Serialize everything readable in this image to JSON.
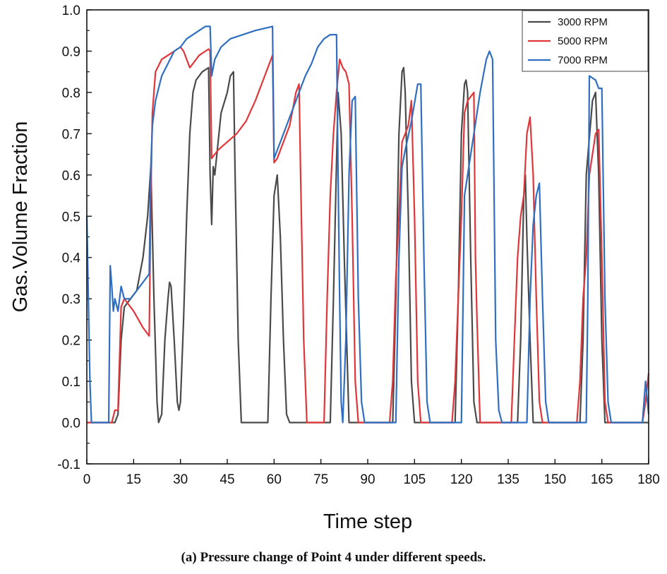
{
  "chart_data": {
    "type": "line",
    "title": "",
    "xlabel": "Time step",
    "ylabel": "Gas.Volume Fraction",
    "xlim": [
      0,
      180
    ],
    "ylim": [
      -0.1,
      1.0
    ],
    "xticks": [
      "0",
      "15",
      "30",
      "45",
      "60",
      "75",
      "90",
      "105",
      "120",
      "135",
      "150",
      "165",
      "180"
    ],
    "yticks": [
      "-0.1",
      "0.0",
      "0.1",
      "0.2",
      "0.3",
      "0.4",
      "0.5",
      "0.6",
      "0.7",
      "0.8",
      "0.9",
      "1.0"
    ],
    "legend_position": "top-right",
    "series": [
      {
        "name": "3000 RPM",
        "color": "#4a4a4a",
        "points": [
          [
            0,
            0
          ],
          [
            9,
            0
          ],
          [
            10,
            0.02
          ],
          [
            11,
            0.2
          ],
          [
            12,
            0.28
          ],
          [
            14,
            0.3
          ],
          [
            16,
            0.32
          ],
          [
            18,
            0.4
          ],
          [
            19.5,
            0.5
          ],
          [
            20.5,
            0.62
          ],
          [
            21.5,
            0.3
          ],
          [
            22.5,
            0.05
          ],
          [
            23,
            0
          ],
          [
            24,
            0.02
          ],
          [
            25,
            0.2
          ],
          [
            26,
            0.3
          ],
          [
            26.5,
            0.34
          ],
          [
            27,
            0.33
          ],
          [
            28,
            0.2
          ],
          [
            29,
            0.05
          ],
          [
            29.5,
            0.03
          ],
          [
            30,
            0.05
          ],
          [
            31,
            0.25
          ],
          [
            32,
            0.5
          ],
          [
            33,
            0.7
          ],
          [
            34,
            0.8
          ],
          [
            35,
            0.83
          ],
          [
            37,
            0.85
          ],
          [
            39,
            0.86
          ],
          [
            39.5,
            0.6
          ],
          [
            40,
            0.48
          ],
          [
            40.5,
            0.62
          ],
          [
            41,
            0.6
          ],
          [
            43,
            0.75
          ],
          [
            45,
            0.8
          ],
          [
            46,
            0.84
          ],
          [
            47,
            0.85
          ],
          [
            47.5,
            0.6
          ],
          [
            48.5,
            0.2
          ],
          [
            49.5,
            0
          ],
          [
            58,
            0
          ],
          [
            59,
            0.3
          ],
          [
            60,
            0.55
          ],
          [
            61,
            0.6
          ],
          [
            62,
            0.45
          ],
          [
            63,
            0.2
          ],
          [
            64,
            0.02
          ],
          [
            65,
            0
          ],
          [
            78,
            0
          ],
          [
            79,
            0.3
          ],
          [
            80.5,
            0.8
          ],
          [
            81.5,
            0.7
          ],
          [
            82.5,
            0.4
          ],
          [
            84,
            0
          ],
          [
            98,
            0
          ],
          [
            99,
            0.3
          ],
          [
            100,
            0.7
          ],
          [
            101,
            0.85
          ],
          [
            101.5,
            0.86
          ],
          [
            102,
            0.8
          ],
          [
            103,
            0.5
          ],
          [
            104,
            0.1
          ],
          [
            105,
            0
          ],
          [
            118,
            0
          ],
          [
            119,
            0.3
          ],
          [
            120,
            0.7
          ],
          [
            121,
            0.82
          ],
          [
            121.5,
            0.83
          ],
          [
            122,
            0.8
          ],
          [
            123,
            0.4
          ],
          [
            124,
            0.05
          ],
          [
            125,
            0
          ],
          [
            138,
            0
          ],
          [
            139,
            0.2
          ],
          [
            140,
            0.55
          ],
          [
            140.5,
            0.6
          ],
          [
            141,
            0.45
          ],
          [
            142,
            0.2
          ],
          [
            143,
            0
          ],
          [
            158,
            0
          ],
          [
            159,
            0.2
          ],
          [
            160,
            0.6
          ],
          [
            162,
            0.78
          ],
          [
            163,
            0.8
          ],
          [
            164,
            0.6
          ],
          [
            165,
            0.2
          ],
          [
            166,
            0
          ],
          [
            180,
            0
          ]
        ]
      },
      {
        "name": "5000 RPM",
        "color": "#e0363a",
        "points": [
          [
            0,
            0
          ],
          [
            8,
            0
          ],
          [
            9,
            0.03
          ],
          [
            10,
            0.03
          ],
          [
            11,
            0.28
          ],
          [
            12,
            0.3
          ],
          [
            13,
            0.29
          ],
          [
            15,
            0.27
          ],
          [
            18,
            0.23
          ],
          [
            20,
            0.21
          ],
          [
            20.5,
            0.55
          ],
          [
            21,
            0.75
          ],
          [
            22,
            0.85
          ],
          [
            24,
            0.88
          ],
          [
            26,
            0.89
          ],
          [
            28,
            0.9
          ],
          [
            30,
            0.91
          ],
          [
            31,
            0.9
          ],
          [
            32,
            0.88
          ],
          [
            33,
            0.86
          ],
          [
            34,
            0.87
          ],
          [
            36,
            0.89
          ],
          [
            38,
            0.9
          ],
          [
            39,
            0.905
          ],
          [
            39.5,
            0.9
          ],
          [
            40,
            0.64
          ],
          [
            42,
            0.66
          ],
          [
            45,
            0.68
          ],
          [
            48,
            0.7
          ],
          [
            51,
            0.73
          ],
          [
            54,
            0.78
          ],
          [
            57,
            0.84
          ],
          [
            59,
            0.88
          ],
          [
            59.5,
            0.89
          ],
          [
            60,
            0.63
          ],
          [
            61,
            0.64
          ],
          [
            63,
            0.68
          ],
          [
            65,
            0.72
          ],
          [
            67,
            0.8
          ],
          [
            68,
            0.82
          ],
          [
            68.5,
            0.6
          ],
          [
            69.5,
            0.2
          ],
          [
            70.5,
            0
          ],
          [
            76,
            0
          ],
          [
            77,
            0.3
          ],
          [
            78,
            0.55
          ],
          [
            79,
            0.7
          ],
          [
            80,
            0.8
          ],
          [
            81,
            0.88
          ],
          [
            82,
            0.86
          ],
          [
            83,
            0.85
          ],
          [
            84,
            0.82
          ],
          [
            85,
            0.5
          ],
          [
            86,
            0.1
          ],
          [
            87,
            0
          ],
          [
            97,
            0
          ],
          [
            98,
            0.1
          ],
          [
            99,
            0.35
          ],
          [
            100,
            0.5
          ],
          [
            101,
            0.68
          ],
          [
            102,
            0.7
          ],
          [
            103,
            0.72
          ],
          [
            104,
            0.78
          ],
          [
            105,
            0.5
          ],
          [
            106,
            0.1
          ],
          [
            107,
            0
          ],
          [
            117,
            0
          ],
          [
            118,
            0.1
          ],
          [
            119,
            0.3
          ],
          [
            120,
            0.5
          ],
          [
            121,
            0.75
          ],
          [
            122,
            0.78
          ],
          [
            123,
            0.79
          ],
          [
            124,
            0.8
          ],
          [
            124.5,
            0.4
          ],
          [
            125,
            0.25
          ],
          [
            126,
            0
          ],
          [
            136,
            0
          ],
          [
            137,
            0.2
          ],
          [
            138,
            0.4
          ],
          [
            139,
            0.5
          ],
          [
            140,
            0.55
          ],
          [
            141,
            0.7
          ],
          [
            142,
            0.74
          ],
          [
            143,
            0.6
          ],
          [
            144,
            0.3
          ],
          [
            145,
            0.05
          ],
          [
            146,
            0
          ],
          [
            157,
            0
          ],
          [
            158,
            0.1
          ],
          [
            159,
            0.3
          ],
          [
            160,
            0.4
          ],
          [
            161,
            0.6
          ],
          [
            162,
            0.65
          ],
          [
            163,
            0.7
          ],
          [
            164,
            0.71
          ],
          [
            165,
            0.4
          ],
          [
            166,
            0.05
          ],
          [
            167,
            0
          ],
          [
            178,
            0
          ],
          [
            179,
            0.05
          ],
          [
            180,
            0.12
          ]
        ]
      },
      {
        "name": "7000 RPM",
        "color": "#2f6ec0",
        "points": [
          [
            0,
            0.5
          ],
          [
            0.5,
            0.3
          ],
          [
            1,
            0.1
          ],
          [
            1.5,
            0
          ],
          [
            7,
            0
          ],
          [
            7.5,
            0.38
          ],
          [
            8,
            0.33
          ],
          [
            8.5,
            0.27
          ],
          [
            9,
            0.3
          ],
          [
            10,
            0.27
          ],
          [
            11,
            0.33
          ],
          [
            12,
            0.3
          ],
          [
            14,
            0.3
          ],
          [
            16,
            0.32
          ],
          [
            18,
            0.34
          ],
          [
            20,
            0.36
          ],
          [
            20.5,
            0.62
          ],
          [
            21,
            0.72
          ],
          [
            22,
            0.78
          ],
          [
            24,
            0.84
          ],
          [
            26,
            0.87
          ],
          [
            28,
            0.9
          ],
          [
            30,
            0.91
          ],
          [
            32,
            0.93
          ],
          [
            34,
            0.94
          ],
          [
            36,
            0.95
          ],
          [
            38,
            0.96
          ],
          [
            39.5,
            0.96
          ],
          [
            40,
            0.84
          ],
          [
            41,
            0.88
          ],
          [
            43,
            0.91
          ],
          [
            46,
            0.93
          ],
          [
            50,
            0.94
          ],
          [
            54,
            0.95
          ],
          [
            58,
            0.957
          ],
          [
            59.5,
            0.96
          ],
          [
            60,
            0.64
          ],
          [
            62,
            0.68
          ],
          [
            64,
            0.72
          ],
          [
            66,
            0.76
          ],
          [
            68,
            0.8
          ],
          [
            70,
            0.84
          ],
          [
            72,
            0.87
          ],
          [
            74,
            0.91
          ],
          [
            76,
            0.93
          ],
          [
            78,
            0.94
          ],
          [
            80,
            0.94
          ],
          [
            80.5,
            0.6
          ],
          [
            81,
            0.3
          ],
          [
            81.5,
            0.05
          ],
          [
            82,
            0
          ],
          [
            83,
            0.2
          ],
          [
            84,
            0.6
          ],
          [
            85,
            0.78
          ],
          [
            86,
            0.79
          ],
          [
            87,
            0.3
          ],
          [
            88,
            0.05
          ],
          [
            89,
            0
          ],
          [
            99,
            0
          ],
          [
            100,
            0.4
          ],
          [
            101,
            0.62
          ],
          [
            102,
            0.66
          ],
          [
            104,
            0.73
          ],
          [
            106,
            0.82
          ],
          [
            107,
            0.82
          ],
          [
            108,
            0.4
          ],
          [
            109,
            0.05
          ],
          [
            110,
            0
          ],
          [
            120,
            0
          ],
          [
            121,
            0.55
          ],
          [
            122,
            0.6
          ],
          [
            124,
            0.7
          ],
          [
            126,
            0.8
          ],
          [
            128,
            0.88
          ],
          [
            129,
            0.9
          ],
          [
            130,
            0.88
          ],
          [
            131,
            0.2
          ],
          [
            132,
            0.03
          ],
          [
            133,
            0
          ],
          [
            141,
            0
          ],
          [
            142,
            0.3
          ],
          [
            143,
            0.48
          ],
          [
            144,
            0.55
          ],
          [
            145,
            0.58
          ],
          [
            146,
            0.3
          ],
          [
            147,
            0.05
          ],
          [
            148,
            0
          ],
          [
            160,
            0
          ],
          [
            160.5,
            0.3
          ],
          [
            161,
            0.84
          ],
          [
            163,
            0.83
          ],
          [
            164,
            0.81
          ],
          [
            165,
            0.81
          ],
          [
            166,
            0.3
          ],
          [
            167,
            0.05
          ],
          [
            168,
            0
          ],
          [
            178,
            0
          ],
          [
            179,
            0.1
          ],
          [
            180,
            0.02
          ]
        ]
      }
    ]
  },
  "caption": "(a) Pressure change of Point 4 under different speeds."
}
